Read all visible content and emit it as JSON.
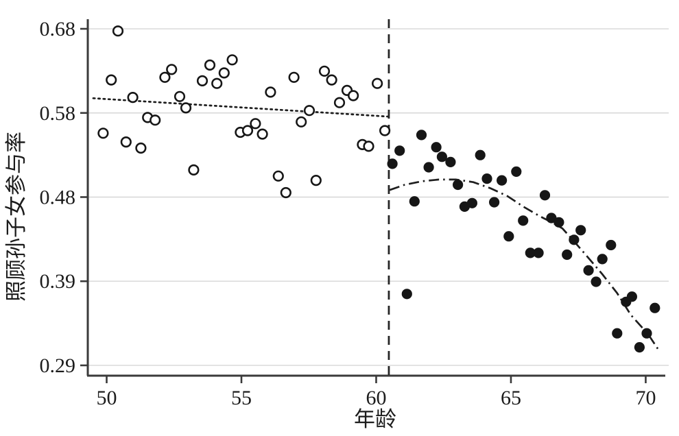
{
  "chart_data": {
    "type": "scatter",
    "title": "",
    "xlabel": "年龄",
    "ylabel": "照顾孙子女参与率",
    "legend": "none",
    "grid": "horizontal-only",
    "x_axis": {
      "ticks": [
        "50",
        "55",
        "60",
        "65",
        "70"
      ],
      "tick_values": [
        50,
        55,
        60,
        65,
        70
      ],
      "min": 49.3,
      "max": 70.65
    },
    "y_axis": {
      "tick_labels": [
        "0.68",
        "0.58",
        "0.48",
        "0.39",
        "0.29"
      ],
      "tick_values": [
        0.6775,
        0.5812,
        0.4849,
        0.3886,
        0.2923
      ],
      "min": 0.2805,
      "max": 0.6885
    },
    "cutoff_line": {
      "x": 60.47,
      "style": "dashed-vertical"
    },
    "series": [
      {
        "name": "open-circles-before-cutoff",
        "marker": "open-circle",
        "color": "#161616",
        "points": [
          [
            49.87,
            0.558
          ],
          [
            50.17,
            0.619
          ],
          [
            50.42,
            0.675
          ],
          [
            50.72,
            0.548
          ],
          [
            50.97,
            0.599
          ],
          [
            51.27,
            0.541
          ],
          [
            51.52,
            0.576
          ],
          [
            51.8,
            0.573
          ],
          [
            52.16,
            0.622
          ],
          [
            52.41,
            0.631
          ],
          [
            52.71,
            0.6
          ],
          [
            52.94,
            0.587
          ],
          [
            53.23,
            0.516
          ],
          [
            53.55,
            0.618
          ],
          [
            53.83,
            0.636
          ],
          [
            54.09,
            0.615
          ],
          [
            54.36,
            0.627
          ],
          [
            54.66,
            0.642
          ],
          [
            54.96,
            0.559
          ],
          [
            55.23,
            0.561
          ],
          [
            55.52,
            0.569
          ],
          [
            55.78,
            0.557
          ],
          [
            56.08,
            0.605
          ],
          [
            56.37,
            0.509
          ],
          [
            56.65,
            0.49
          ],
          [
            56.95,
            0.622
          ],
          [
            57.22,
            0.571
          ],
          [
            57.52,
            0.584
          ],
          [
            57.77,
            0.504
          ],
          [
            58.08,
            0.629
          ],
          [
            58.35,
            0.619
          ],
          [
            58.64,
            0.593
          ],
          [
            58.92,
            0.607
          ],
          [
            59.15,
            0.601
          ],
          [
            59.49,
            0.545
          ],
          [
            59.72,
            0.543
          ],
          [
            60.04,
            0.615
          ],
          [
            60.32,
            0.561
          ]
        ]
      },
      {
        "name": "filled-circles-after-cutoff",
        "marker": "filled-circle",
        "color": "#161616",
        "points": [
          [
            60.6,
            0.523
          ],
          [
            60.87,
            0.538
          ],
          [
            61.14,
            0.374
          ],
          [
            61.42,
            0.48
          ],
          [
            61.68,
            0.556
          ],
          [
            61.95,
            0.519
          ],
          [
            62.23,
            0.542
          ],
          [
            62.44,
            0.531
          ],
          [
            62.76,
            0.525
          ],
          [
            63.03,
            0.499
          ],
          [
            63.28,
            0.474
          ],
          [
            63.56,
            0.478
          ],
          [
            63.86,
            0.533
          ],
          [
            64.11,
            0.506
          ],
          [
            64.38,
            0.479
          ],
          [
            64.66,
            0.504
          ],
          [
            64.92,
            0.44
          ],
          [
            65.2,
            0.514
          ],
          [
            65.45,
            0.458
          ],
          [
            65.72,
            0.421
          ],
          [
            66.02,
            0.421
          ],
          [
            66.26,
            0.487
          ],
          [
            66.5,
            0.461
          ],
          [
            66.78,
            0.456
          ],
          [
            67.08,
            0.419
          ],
          [
            67.34,
            0.436
          ],
          [
            67.59,
            0.447
          ],
          [
            67.88,
            0.401
          ],
          [
            68.16,
            0.388
          ],
          [
            68.39,
            0.414
          ],
          [
            68.71,
            0.43
          ],
          [
            68.94,
            0.329
          ],
          [
            69.27,
            0.365
          ],
          [
            69.49,
            0.371
          ],
          [
            69.77,
            0.313
          ],
          [
            70.04,
            0.329
          ],
          [
            70.34,
            0.358
          ]
        ]
      }
    ],
    "fit_lines": [
      {
        "name": "pre-cutoff-fit",
        "style": "dotted",
        "points": [
          [
            49.5,
            0.598
          ],
          [
            60.47,
            0.577
          ]
        ]
      },
      {
        "name": "post-cutoff-fit",
        "style": "dash-dot",
        "points": [
          [
            60.5,
            0.493
          ],
          [
            61.06,
            0.499
          ],
          [
            61.7,
            0.503
          ],
          [
            62.33,
            0.505
          ],
          [
            62.97,
            0.505
          ],
          [
            63.6,
            0.502
          ],
          [
            64.24,
            0.495
          ],
          [
            64.87,
            0.486
          ],
          [
            65.46,
            0.474
          ],
          [
            66.07,
            0.463
          ],
          [
            66.58,
            0.455
          ],
          [
            66.91,
            0.449
          ],
          [
            67.29,
            0.436
          ],
          [
            67.8,
            0.418
          ],
          [
            68.38,
            0.397
          ],
          [
            68.94,
            0.375
          ],
          [
            69.45,
            0.35
          ],
          [
            70.09,
            0.328
          ],
          [
            70.52,
            0.308
          ]
        ]
      }
    ],
    "colors": {
      "marker": "#161616",
      "grid": "#d6d6d6",
      "axis": "#3a3a3a",
      "background": "#ffffff"
    }
  }
}
